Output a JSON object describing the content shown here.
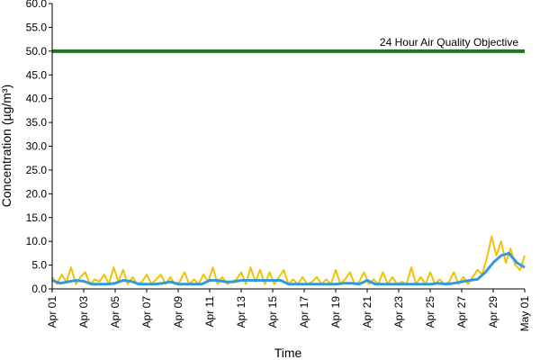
{
  "chart_data": {
    "type": "line",
    "title": "",
    "xlabel": "Time",
    "ylabel": "Concentration (µg/m³)",
    "ylim": [
      0,
      60
    ],
    "y_ticks": [
      "0.0",
      "5.0",
      "10.0",
      "15.0",
      "20.0",
      "25.0",
      "30.0",
      "35.0",
      "40.0",
      "45.0",
      "50.0",
      "55.0",
      "60.0"
    ],
    "xlim_days": [
      1,
      31
    ],
    "x_ticks": [
      {
        "day": 1,
        "label": "Apr 01"
      },
      {
        "day": 3,
        "label": "Apr 03"
      },
      {
        "day": 5,
        "label": "Apr 05"
      },
      {
        "day": 7,
        "label": "Apr 07"
      },
      {
        "day": 9,
        "label": "Apr 09"
      },
      {
        "day": 11,
        "label": "Apr 11"
      },
      {
        "day": 13,
        "label": "Apr 13"
      },
      {
        "day": 15,
        "label": "Apr 15"
      },
      {
        "day": 17,
        "label": "Apr 17"
      },
      {
        "day": 19,
        "label": "Apr 19"
      },
      {
        "day": 21,
        "label": "Apr 21"
      },
      {
        "day": 23,
        "label": "Apr 23"
      },
      {
        "day": 25,
        "label": "Apr 25"
      },
      {
        "day": 27,
        "label": "Apr 27"
      },
      {
        "day": 29,
        "label": "Apr 29"
      },
      {
        "day": 31,
        "label": "May 01"
      }
    ],
    "grid": false,
    "legend": "none",
    "reference_line": {
      "value": 50.0,
      "label": "24 Hour Air Quality Objective",
      "color": "#1a7a1a"
    },
    "series": [
      {
        "color": "#f2c200",
        "x": [
          1.0,
          1.3,
          1.6,
          1.9,
          2.2,
          2.5,
          2.8,
          3.1,
          3.4,
          3.7,
          4.0,
          4.3,
          4.6,
          4.9,
          5.2,
          5.5,
          5.8,
          6.1,
          6.4,
          6.7,
          7.0,
          7.3,
          7.6,
          7.9,
          8.2,
          8.5,
          8.8,
          9.1,
          9.4,
          9.7,
          10.0,
          10.3,
          10.6,
          10.9,
          11.2,
          11.5,
          11.8,
          12.1,
          12.4,
          12.7,
          13.0,
          13.3,
          13.6,
          13.9,
          14.2,
          14.5,
          14.8,
          15.1,
          15.4,
          15.7,
          16.0,
          16.3,
          16.6,
          16.9,
          17.2,
          17.5,
          17.8,
          18.1,
          18.4,
          18.7,
          19.0,
          19.3,
          19.6,
          19.9,
          20.2,
          20.5,
          20.8,
          21.1,
          21.4,
          21.7,
          22.0,
          22.3,
          22.6,
          22.9,
          23.2,
          23.5,
          23.8,
          24.1,
          24.4,
          24.7,
          25.0,
          25.3,
          25.6,
          25.9,
          26.2,
          26.5,
          26.8,
          27.1,
          27.4,
          27.7,
          28.0,
          28.3,
          28.6,
          28.9,
          29.2,
          29.5,
          29.8,
          30.1,
          30.4,
          30.7,
          31.0
        ],
        "values": [
          2.5,
          1.0,
          3.0,
          1.5,
          4.5,
          1.0,
          2.5,
          3.5,
          1.0,
          2.0,
          1.5,
          3.0,
          1.0,
          4.5,
          1.5,
          4.0,
          1.0,
          2.5,
          1.0,
          1.5,
          3.0,
          1.0,
          2.0,
          3.0,
          1.0,
          2.5,
          1.0,
          1.5,
          3.5,
          1.0,
          2.0,
          1.0,
          3.0,
          1.5,
          4.5,
          1.0,
          2.5,
          1.0,
          1.5,
          2.0,
          3.5,
          1.0,
          4.5,
          1.5,
          4.0,
          1.0,
          3.5,
          1.0,
          2.5,
          4.0,
          1.0,
          2.0,
          1.0,
          2.5,
          1.0,
          1.5,
          2.5,
          1.0,
          2.0,
          1.0,
          4.0,
          1.0,
          2.0,
          3.5,
          1.0,
          1.5,
          3.5,
          1.0,
          2.0,
          1.0,
          3.5,
          1.0,
          2.5,
          1.0,
          1.5,
          1.0,
          4.5,
          1.0,
          2.5,
          1.0,
          3.5,
          1.0,
          2.0,
          1.0,
          1.5,
          3.5,
          1.0,
          2.5,
          1.0,
          2.5,
          4.0,
          3.0,
          6.5,
          11.0,
          7.0,
          10.0,
          5.5,
          8.5,
          5.0,
          4.0,
          7.0
        ]
      },
      {
        "color": "#3399dd",
        "x": [
          1.0,
          1.5,
          2.0,
          2.5,
          3.0,
          3.5,
          4.0,
          4.5,
          5.0,
          5.5,
          6.0,
          6.5,
          7.0,
          7.5,
          8.0,
          8.5,
          9.0,
          9.5,
          10.0,
          10.5,
          11.0,
          11.5,
          12.0,
          12.5,
          13.0,
          13.5,
          14.0,
          14.5,
          15.0,
          15.5,
          16.0,
          16.5,
          17.0,
          17.5,
          18.0,
          18.5,
          19.0,
          19.5,
          20.0,
          20.5,
          21.0,
          21.5,
          22.0,
          22.5,
          23.0,
          23.5,
          24.0,
          24.5,
          25.0,
          25.5,
          26.0,
          26.5,
          27.0,
          27.5,
          28.0,
          28.5,
          29.0,
          29.5,
          30.0,
          30.5,
          31.0
        ],
        "values": [
          1.8,
          1.2,
          1.5,
          1.8,
          1.6,
          1.0,
          1.0,
          1.0,
          1.2,
          1.8,
          1.6,
          1.0,
          1.0,
          1.0,
          1.2,
          1.5,
          1.0,
          1.0,
          1.0,
          1.0,
          1.8,
          1.8,
          1.5,
          1.5,
          1.8,
          1.8,
          1.8,
          1.8,
          1.8,
          1.8,
          1.0,
          1.0,
          1.0,
          1.0,
          1.0,
          1.0,
          1.0,
          1.2,
          1.2,
          1.0,
          1.8,
          1.0,
          1.0,
          1.0,
          1.0,
          1.0,
          1.0,
          1.0,
          1.0,
          1.2,
          1.0,
          1.2,
          1.5,
          1.8,
          2.0,
          3.5,
          5.5,
          7.0,
          7.5,
          5.5,
          4.5
        ]
      }
    ]
  }
}
